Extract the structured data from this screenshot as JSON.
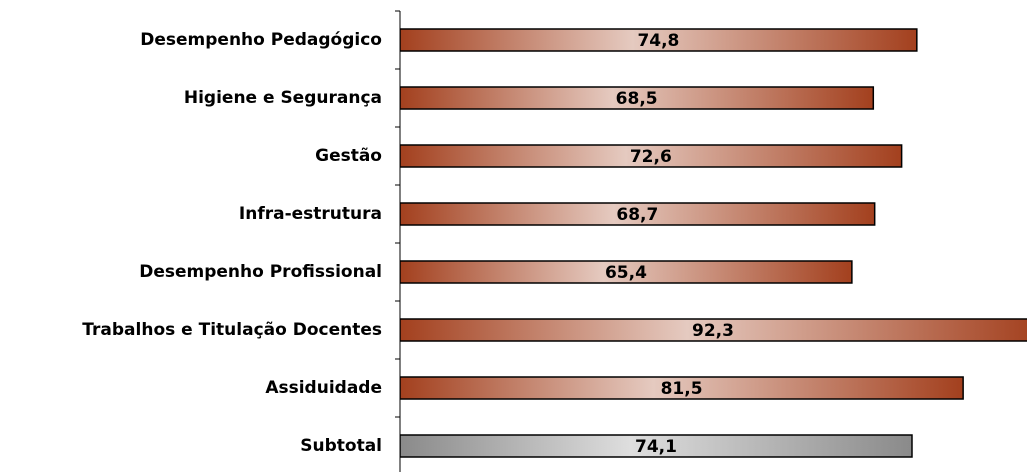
{
  "chart_data": {
    "type": "barh",
    "categories": [
      "Desempenho Pedagógico",
      "Higiene e Segurança",
      "Gestão",
      "Infra-estrutura",
      "Desempenho Profissional",
      "Trabalhos e Titulação Docentes",
      "Assiduidade",
      "Subtotal"
    ],
    "values": [
      74.8,
      68.5,
      72.6,
      68.7,
      65.4,
      92.3,
      81.5,
      74.1
    ],
    "value_labels": [
      "74,8",
      "68,5",
      "72,6",
      "68,7",
      "65,4",
      "92,3",
      "81,5",
      "74,1"
    ],
    "colors": [
      "#a3401e",
      "#a3401e",
      "#a3401e",
      "#a3401e",
      "#a3401e",
      "#a3401e",
      "#a3401e",
      "#8a8a8a"
    ],
    "xlim": [
      0,
      90.6
    ]
  }
}
